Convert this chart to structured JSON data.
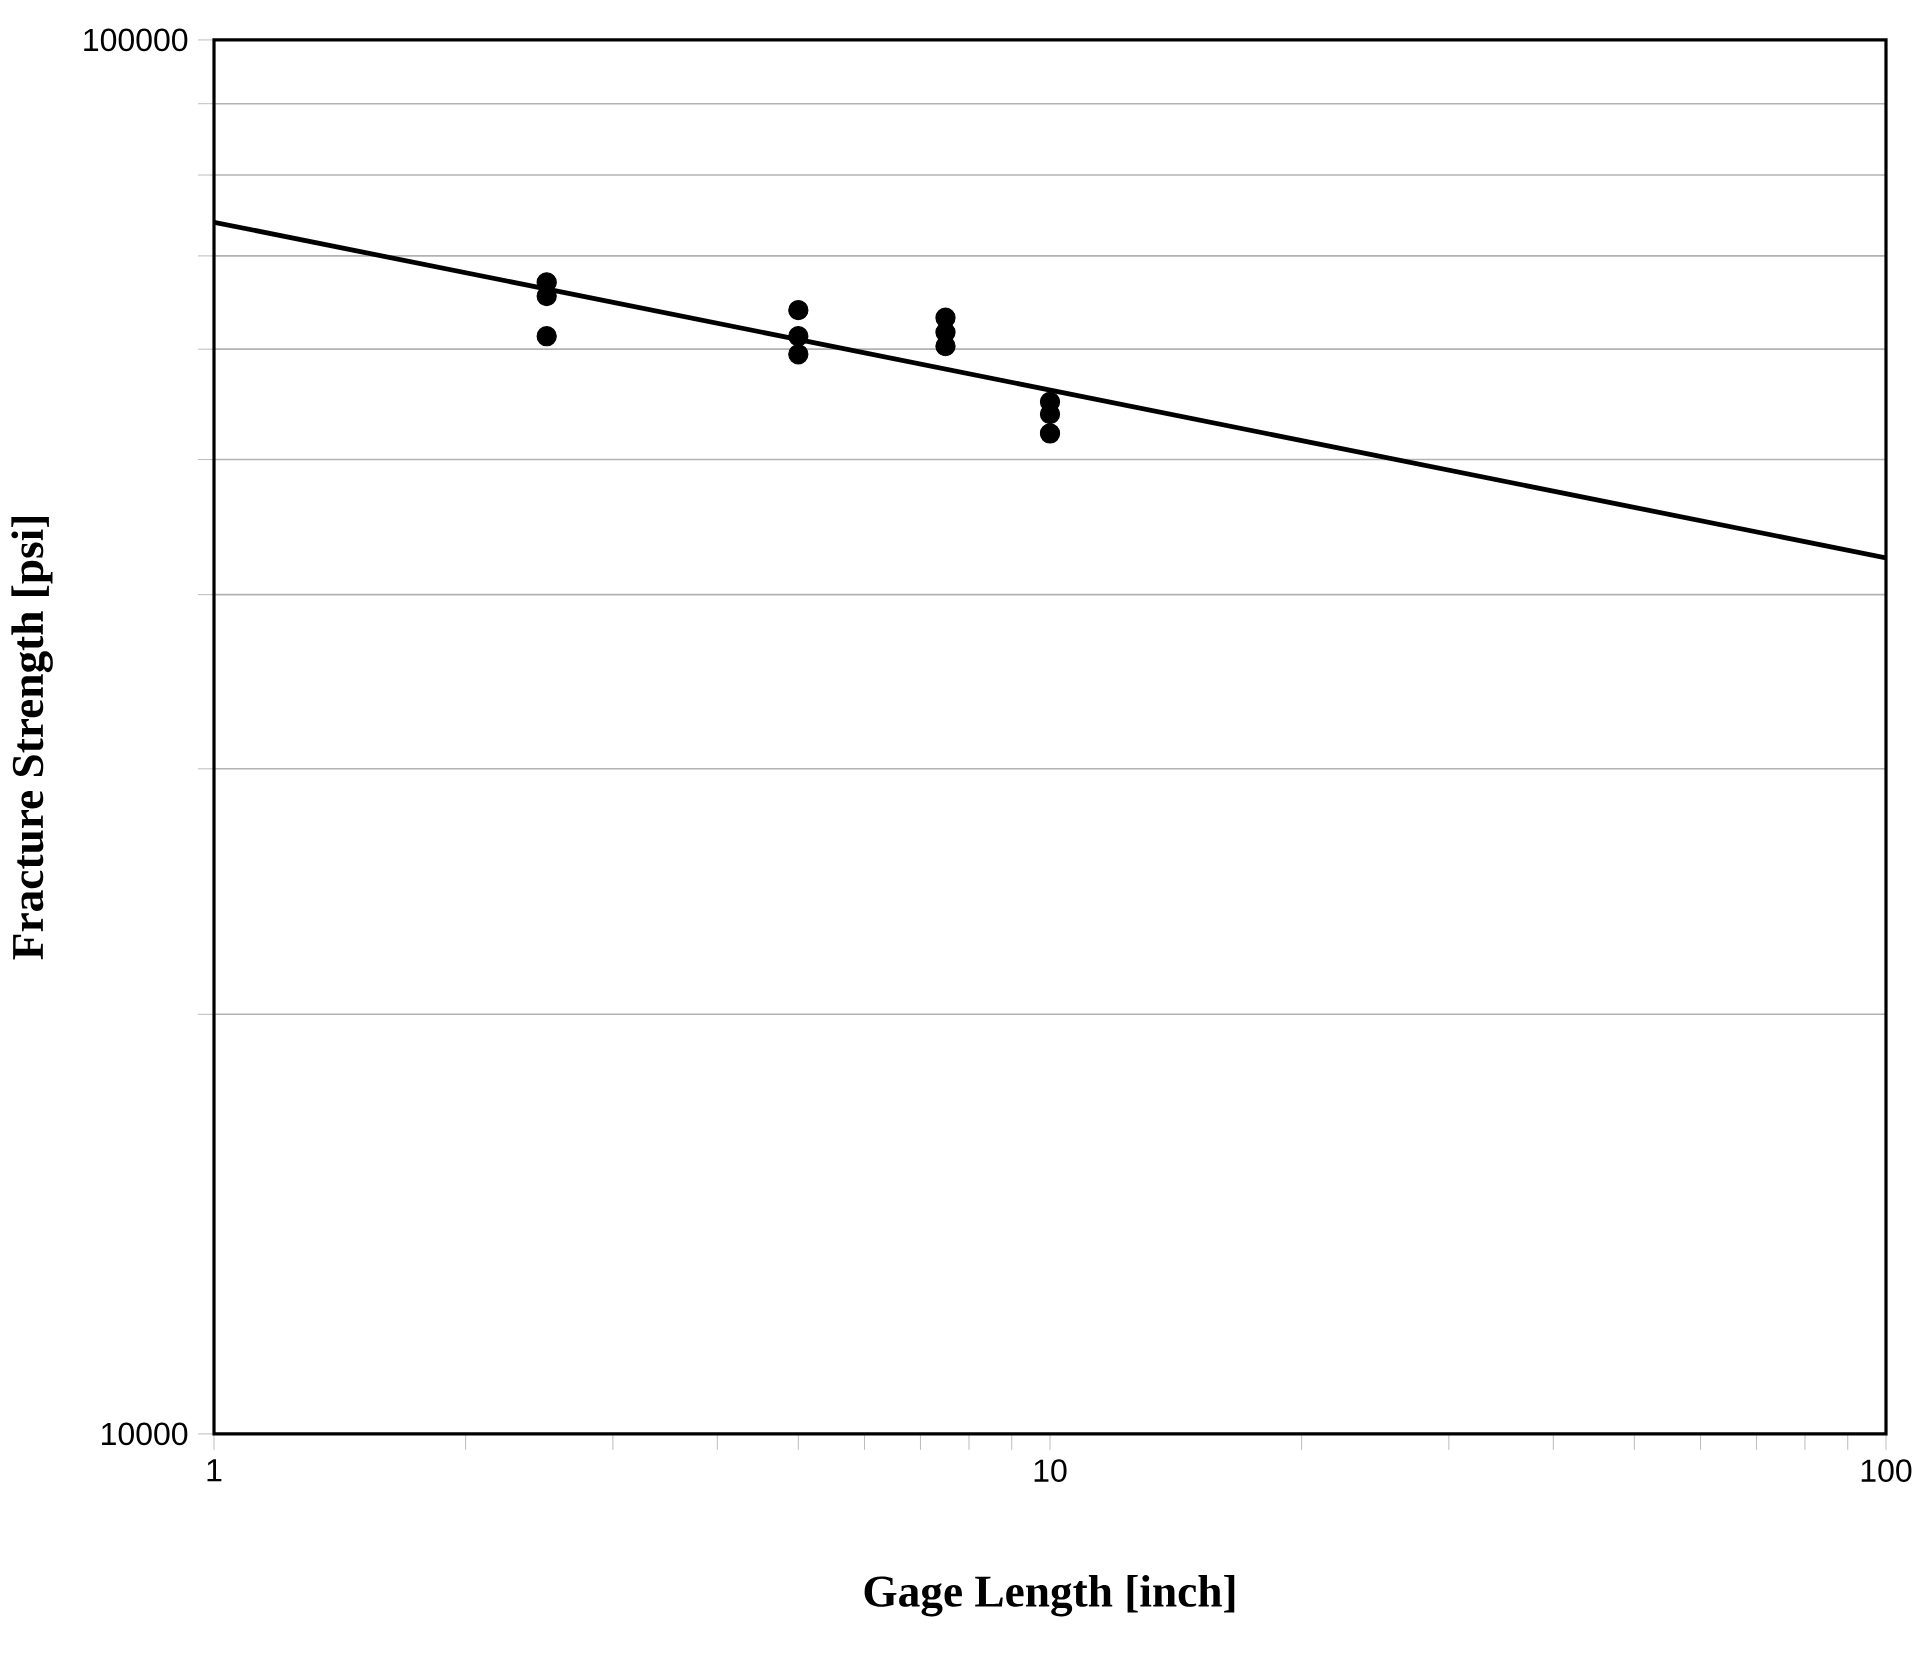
{
  "chart_data": {
    "type": "scatter",
    "xlabel": "Gage Length [inch]",
    "ylabel": "Fracture Strength [psi]",
    "log": "xy",
    "grid": "y",
    "xlim": [
      1,
      100
    ],
    "ylim": [
      10000,
      100000
    ],
    "xticks": [
      1,
      {
        "value": 2,
        "label": null
      },
      {
        "value": 3,
        "label": null
      },
      {
        "value": 4,
        "label": null
      },
      {
        "value": 5,
        "label": null
      },
      {
        "value": 6,
        "label": null
      },
      {
        "value": 7,
        "label": null
      },
      {
        "value": 8,
        "label": null
      },
      {
        "value": 9,
        "label": null
      },
      10,
      {
        "value": 20,
        "label": null
      },
      {
        "value": 30,
        "label": null
      },
      {
        "value": 40,
        "label": null
      },
      {
        "value": 50,
        "label": null
      },
      {
        "value": 60,
        "label": null
      },
      {
        "value": 70,
        "label": null
      },
      {
        "value": 80,
        "label": null
      },
      {
        "value": 90,
        "label": null
      },
      100
    ],
    "yticks": [
      10000,
      {
        "value": 20000,
        "label": null
      },
      {
        "value": 30000,
        "label": null
      },
      {
        "value": 40000,
        "label": null
      },
      {
        "value": 50000,
        "label": null
      },
      {
        "value": 60000,
        "label": null
      },
      {
        "value": 70000,
        "label": null
      },
      {
        "value": 80000,
        "label": null
      },
      {
        "value": 90000,
        "label": null
      },
      100000
    ],
    "series": [
      {
        "type": "scatter",
        "color": "#000000",
        "marker": "circle",
        "x": [
          2.5,
          2.5,
          2.5,
          5,
          5,
          5,
          7.5,
          7.5,
          7.5,
          10,
          10,
          10
        ],
        "values": [
          67000,
          65500,
          61300,
          64000,
          61300,
          59500,
          63200,
          61700,
          60300,
          55000,
          53900,
          52200
        ]
      },
      {
        "type": "line",
        "color": "#000000",
        "marker": "none",
        "line_style": "solid",
        "x": [
          1,
          100
        ],
        "values": [
          74000,
          42500
        ]
      }
    ]
  }
}
